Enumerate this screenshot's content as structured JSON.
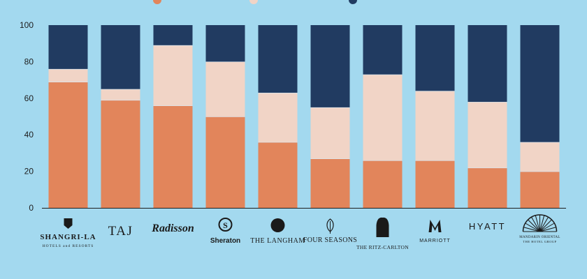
{
  "chart_data": {
    "type": "bar",
    "stacked": true,
    "categories": [
      "SHANGRI-LA",
      "TAJ",
      "Radisson",
      "Sheraton",
      "THE LANGHAM",
      "FOUR SEASONS",
      "THE RITZ-CARLTON",
      "MARRIOTT",
      "HYATT",
      "MANDARIN ORIENTAL"
    ],
    "category_sublabels": [
      "HOTELS and RESORTS",
      "",
      "",
      "",
      "",
      "",
      "",
      "",
      "",
      "THE HOTEL GROUP"
    ],
    "series": [
      {
        "color": "#e2855b",
        "values": [
          69,
          59,
          56,
          50,
          36,
          27,
          26,
          26,
          22,
          20
        ]
      },
      {
        "color": "#f1d4c6",
        "values": [
          7,
          6,
          33,
          30,
          27,
          28,
          47,
          38,
          36,
          16
        ]
      },
      {
        "color": "#213b61",
        "values": [
          24,
          35,
          11,
          20,
          37,
          45,
          27,
          36,
          42,
          64
        ]
      }
    ],
    "ylim": [
      0,
      100
    ],
    "yticks": [
      0,
      20,
      40,
      60,
      80,
      100
    ],
    "xlabel": "",
    "ylabel": "",
    "title": ""
  }
}
